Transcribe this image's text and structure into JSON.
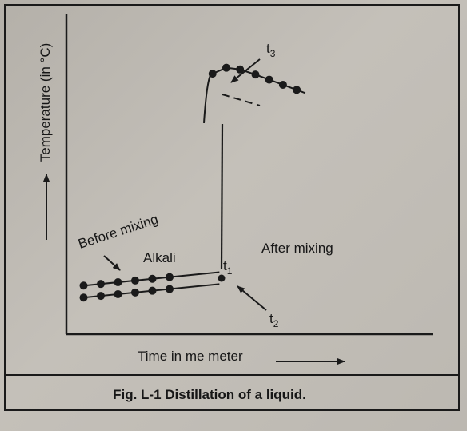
{
  "caption": "Fig. L-1 Distillation of a liquid.",
  "chart_data": {
    "type": "line",
    "title": "",
    "xlabel": "Time in me meter",
    "ylabel": "Temperature (in °C)",
    "grid": false,
    "ticks_shown": false,
    "series": [
      {
        "name": "Alkali",
        "x": [
          1,
          2,
          3,
          4,
          5,
          6
        ],
        "y": [
          2.85,
          2.95,
          3.05,
          3.15,
          3.25,
          3.35
        ]
      },
      {
        "name": "",
        "x": [
          1,
          2,
          3,
          4,
          5,
          6
        ],
        "y": [
          2.15,
          2.25,
          2.35,
          2.45,
          2.55,
          2.65
        ]
      },
      {
        "name": "",
        "x": [
          8.5,
          9.3,
          10.1,
          11.0,
          11.8,
          12.6,
          13.4
        ],
        "y": [
          15.3,
          15.65,
          15.55,
          15.25,
          14.95,
          14.65,
          14.35
        ]
      }
    ],
    "annotations": {
      "before_mixing": "Before mixing",
      "alkali": "Alkali",
      "after_mixing": "After mixing",
      "t1": "t",
      "t1_sub": "1",
      "t2": "t",
      "t2_sub": "2",
      "t3": "t",
      "t3_sub": "3"
    }
  }
}
